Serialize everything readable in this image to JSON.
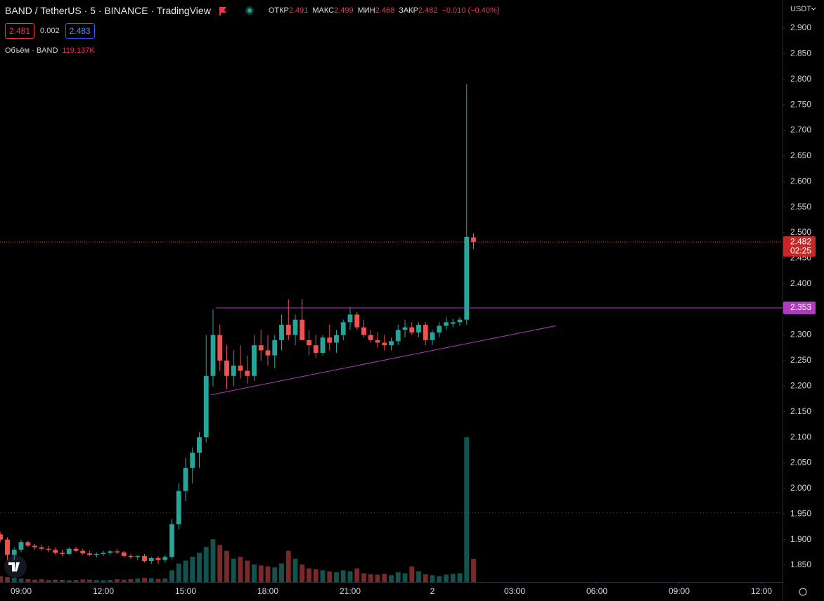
{
  "chart_data": {
    "type": "candlestick",
    "title": "BAND / TetherUS · 5 · BINANCE · TradingView",
    "ohlc_labels": [
      "ОТКР",
      "МАКС",
      "МИН",
      "ЗАКР"
    ],
    "change": "−0.010 (−0.40%)",
    "bid": 2.481,
    "spread": 0.002,
    "ask": 2.483,
    "volume_title": "Объём · BAND",
    "volume_label": "119.137K",
    "currency": "USDT",
    "countdown": "02:25",
    "up_color": "#26a69a",
    "down_color": "#ef5350",
    "x": [
      -3,
      -2,
      -1,
      0,
      1,
      2,
      3,
      4,
      5,
      6,
      7,
      8,
      9,
      10,
      11,
      12,
      13,
      14,
      15,
      16,
      17,
      18,
      19,
      20,
      21,
      22,
      23,
      24,
      25,
      26,
      27,
      28,
      29,
      30,
      31,
      32,
      33,
      34,
      35,
      36,
      37,
      38,
      39,
      40,
      41,
      42,
      43,
      44,
      45,
      46,
      47,
      48,
      49,
      50,
      51,
      52,
      53,
      54,
      55,
      56,
      57,
      58,
      59,
      60,
      61,
      62,
      63,
      64,
      65,
      66
    ],
    "open": [
      1.91,
      1.9,
      1.87,
      1.88,
      1.895,
      1.888,
      1.885,
      1.882,
      1.88,
      1.874,
      1.872,
      1.882,
      1.878,
      1.873,
      1.87,
      1.872,
      1.874,
      1.877,
      1.875,
      1.868,
      1.866,
      1.868,
      1.858,
      1.864,
      1.86,
      1.866,
      1.93,
      1.995,
      2.04,
      2.07,
      2.1,
      2.22,
      2.3,
      2.25,
      2.22,
      2.24,
      2.23,
      2.22,
      2.28,
      2.27,
      2.26,
      2.29,
      2.32,
      2.3,
      2.33,
      2.29,
      2.28,
      2.265,
      2.295,
      2.285,
      2.3,
      2.325,
      2.34,
      2.315,
      2.3,
      2.29,
      2.285,
      2.28,
      2.288,
      2.31,
      2.315,
      2.305,
      2.32,
      2.29,
      2.305,
      2.318,
      2.322,
      2.325,
      2.33,
      2.491
    ],
    "high": [
      1.915,
      1.905,
      1.885,
      1.9,
      1.898,
      1.892,
      1.89,
      1.888,
      1.885,
      1.88,
      1.885,
      1.886,
      1.882,
      1.878,
      1.875,
      1.878,
      1.88,
      1.882,
      1.878,
      1.872,
      1.87,
      1.872,
      1.866,
      1.868,
      1.87,
      1.94,
      2.01,
      2.06,
      2.08,
      2.11,
      2.3,
      2.35,
      2.32,
      2.28,
      2.27,
      2.28,
      2.26,
      2.3,
      2.31,
      2.3,
      2.3,
      2.34,
      2.37,
      2.34,
      2.37,
      2.31,
      2.3,
      2.3,
      2.32,
      2.31,
      2.33,
      2.355,
      2.345,
      2.33,
      2.31,
      2.305,
      2.3,
      2.295,
      2.32,
      2.33,
      2.325,
      2.325,
      2.325,
      2.31,
      2.325,
      2.335,
      2.332,
      2.335,
      2.79,
      2.499
    ],
    "low": [
      1.895,
      1.86,
      1.86,
      1.875,
      1.885,
      1.88,
      1.878,
      1.875,
      1.87,
      1.868,
      1.87,
      1.875,
      1.87,
      1.868,
      1.865,
      1.868,
      1.87,
      1.872,
      1.865,
      1.862,
      1.86,
      1.855,
      1.852,
      1.852,
      1.855,
      1.862,
      1.92,
      1.975,
      2.01,
      2.04,
      2.09,
      2.2,
      2.23,
      2.195,
      2.2,
      2.215,
      2.205,
      2.21,
      2.25,
      2.24,
      2.235,
      2.27,
      2.29,
      2.28,
      2.3,
      2.26,
      2.255,
      2.26,
      2.27,
      2.265,
      2.29,
      2.31,
      2.31,
      2.295,
      2.285,
      2.275,
      2.27,
      2.27,
      2.28,
      2.295,
      2.3,
      2.295,
      2.28,
      2.28,
      2.295,
      2.31,
      2.315,
      2.318,
      2.32,
      2.468
    ],
    "close": [
      1.9,
      1.87,
      1.88,
      1.895,
      1.888,
      1.885,
      1.882,
      1.88,
      1.874,
      1.872,
      1.882,
      1.878,
      1.873,
      1.87,
      1.872,
      1.874,
      1.877,
      1.875,
      1.868,
      1.866,
      1.868,
      1.858,
      1.864,
      1.86,
      1.866,
      1.93,
      1.995,
      2.04,
      2.07,
      2.1,
      2.22,
      2.3,
      2.25,
      2.22,
      2.24,
      2.23,
      2.22,
      2.28,
      2.27,
      2.26,
      2.29,
      2.32,
      2.3,
      2.33,
      2.29,
      2.28,
      2.265,
      2.295,
      2.285,
      2.3,
      2.325,
      2.34,
      2.315,
      2.3,
      2.29,
      2.285,
      2.28,
      2.288,
      2.31,
      2.315,
      2.305,
      2.32,
      2.29,
      2.305,
      2.318,
      2.325,
      2.325,
      2.33,
      2.492,
      2.482
    ],
    "volume": [
      30,
      25,
      22,
      18,
      15,
      12,
      14,
      10,
      12,
      11,
      9,
      10,
      13,
      12,
      10,
      9,
      11,
      14,
      12,
      15,
      18,
      22,
      20,
      16,
      18,
      60,
      95,
      110,
      130,
      150,
      180,
      220,
      190,
      160,
      120,
      130,
      110,
      90,
      85,
      80,
      75,
      95,
      160,
      120,
      90,
      70,
      65,
      60,
      55,
      50,
      60,
      55,
      70,
      45,
      40,
      38,
      42,
      35,
      50,
      45,
      80,
      55,
      40,
      35,
      30,
      38,
      42,
      45,
      743,
      119.137
    ],
    "xlim": [
      -3,
      110
    ],
    "xticks": [
      {
        "value": 0,
        "label": "09:00"
      },
      {
        "value": 12,
        "label": "12:00"
      },
      {
        "value": 24,
        "label": "15:00"
      },
      {
        "value": 36,
        "label": "18:00"
      },
      {
        "value": 48,
        "label": "21:00"
      },
      {
        "value": 60,
        "label": "2"
      },
      {
        "value": 72,
        "label": "03:00"
      },
      {
        "value": 84,
        "label": "06:00"
      },
      {
        "value": 96,
        "label": "09:00"
      },
      {
        "value": 108,
        "label": "12:00"
      }
    ],
    "ylim": [
      1.817,
      2.955
    ],
    "yticks": [
      {
        "value": 1.85,
        "label": "1.850"
      },
      {
        "value": 1.9,
        "label": "1.900"
      },
      {
        "value": 1.95,
        "label": "1.950"
      },
      {
        "value": 2.0,
        "label": "2.000"
      },
      {
        "value": 2.05,
        "label": "2.050"
      },
      {
        "value": 2.1,
        "label": "2.100"
      },
      {
        "value": 2.15,
        "label": "2.150"
      },
      {
        "value": 2.2,
        "label": "2.200"
      },
      {
        "value": 2.25,
        "label": "2.250"
      },
      {
        "value": 2.3,
        "label": "2.300"
      },
      {
        "value": 2.35,
        "label": "2.350"
      },
      {
        "value": 2.4,
        "label": "2.400"
      },
      {
        "value": 2.45,
        "label": "2.450"
      },
      {
        "value": 2.5,
        "label": "2.500"
      },
      {
        "value": 2.55,
        "label": "2.550"
      },
      {
        "value": 2.6,
        "label": "2.600"
      },
      {
        "value": 2.65,
        "label": "2.650"
      },
      {
        "value": 2.7,
        "label": "2.700"
      },
      {
        "value": 2.75,
        "label": "2.750"
      },
      {
        "value": 2.8,
        "label": "2.800"
      },
      {
        "value": 2.85,
        "label": "2.850"
      },
      {
        "value": 2.9,
        "label": "2.900"
      }
    ],
    "horizontal_line": {
      "value": 2.353,
      "x_start": 28.4,
      "color": "#b03bbf"
    },
    "trendline": {
      "x": [
        27.7,
        78
      ],
      "y": [
        2.183,
        2.318
      ],
      "color": "#b03bbf"
    },
    "reference_line": 1.953
  }
}
